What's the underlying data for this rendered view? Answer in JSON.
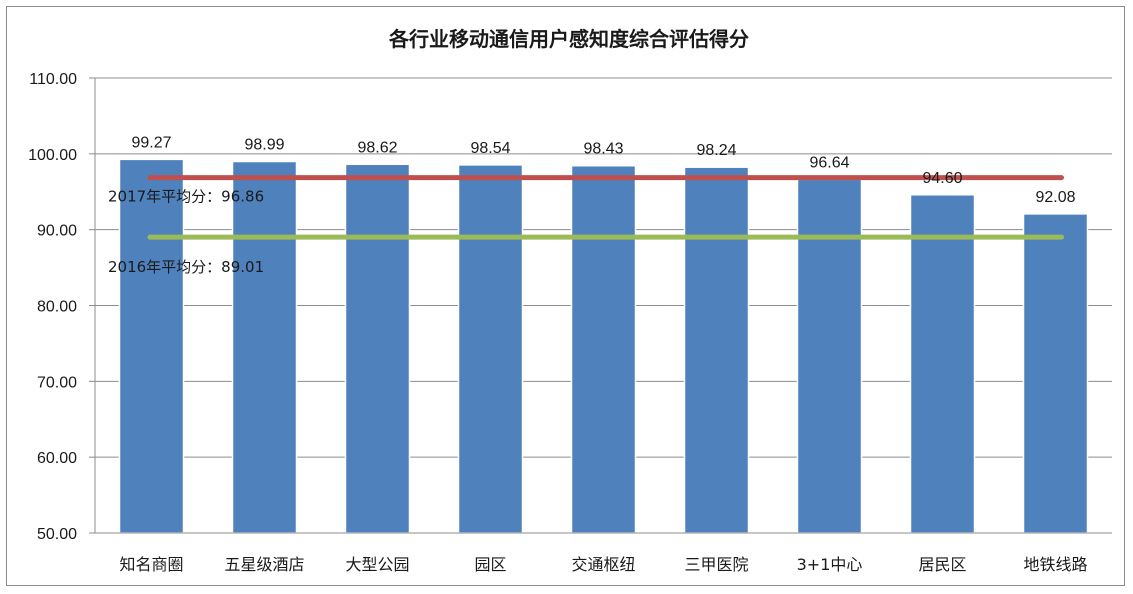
{
  "chart_data": {
    "type": "bar",
    "title": "各行业移动通信用户感知度综合评估得分",
    "xlabel": "",
    "ylabel": "",
    "ylim": [
      50,
      110
    ],
    "yticks": [
      "50.00",
      "60.00",
      "70.00",
      "80.00",
      "90.00",
      "100.00",
      "110.00"
    ],
    "categories": [
      "知名商圈",
      "五星级酒店",
      "大型公园",
      "园区",
      "交通枢纽",
      "三甲医院",
      "3+1中心",
      "居民区",
      "地铁线路"
    ],
    "values": [
      99.27,
      98.99,
      98.62,
      98.54,
      98.43,
      98.24,
      96.64,
      94.6,
      92.08
    ],
    "value_labels": [
      "99.27",
      "98.99",
      "98.62",
      "98.54",
      "98.43",
      "98.24",
      "96.64",
      "94.60",
      "92.08"
    ],
    "grid": true,
    "bar_color": "#4f81bd",
    "reference_lines": [
      {
        "label": "2017年平均分：96.86",
        "value": 96.86,
        "color": "#c0504d"
      },
      {
        "label": "2016年平均分：89.01",
        "value": 89.01,
        "color": "#9bbb59"
      }
    ]
  }
}
